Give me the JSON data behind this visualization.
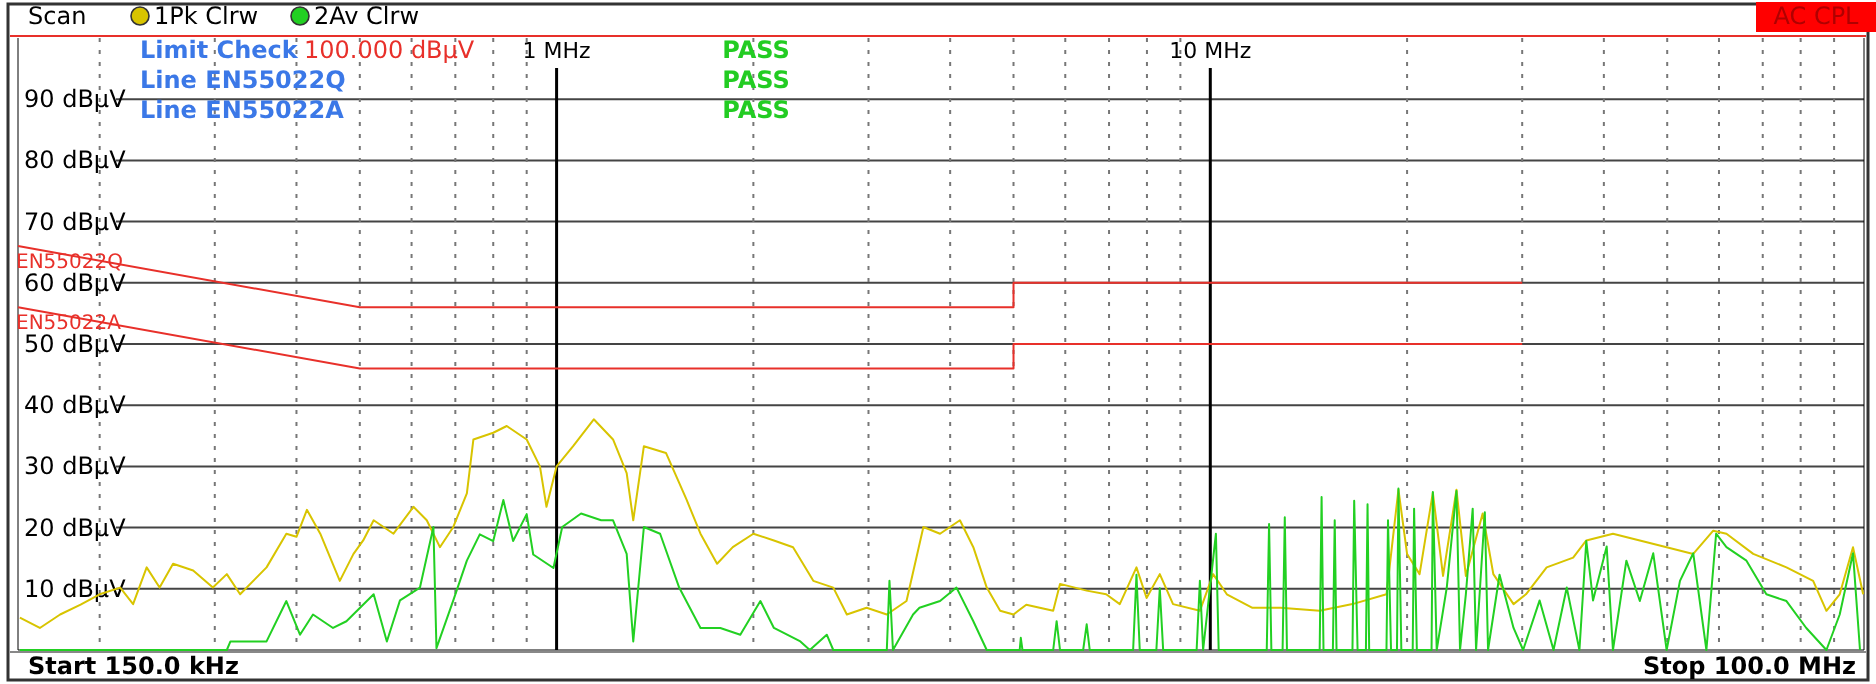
{
  "chart_data": {
    "type": "line",
    "annotations": [
      "Scan",
      "Limit Check",
      "100.000 dBµV",
      "Line EN55022Q",
      "Line EN55022A",
      "PASS",
      "PASS",
      "PASS",
      "AC CPL",
      "Start 150.0 kHz",
      "Stop 100.0 MHz"
    ],
    "xlim": [
      0.15,
      100
    ],
    "ylim": [
      0,
      100
    ],
    "log": "x",
    "grid": true,
    "legend": "top left",
    "xticks": [
      {
        "value": 0.2,
        "label": null
      },
      {
        "value": 0.3,
        "label": null
      },
      {
        "value": 0.4,
        "label": null
      },
      {
        "value": 0.5,
        "label": null
      },
      {
        "value": 0.6,
        "label": null
      },
      {
        "value": 0.7,
        "label": null
      },
      {
        "value": 0.8,
        "label": null
      },
      {
        "value": 0.9,
        "label": null
      },
      {
        "value": 1,
        "label": "1 MHz"
      },
      {
        "value": 2,
        "label": null
      },
      {
        "value": 3,
        "label": null
      },
      {
        "value": 4,
        "label": null
      },
      {
        "value": 5,
        "label": null
      },
      {
        "value": 6,
        "label": null
      },
      {
        "value": 7,
        "label": null
      },
      {
        "value": 8,
        "label": null
      },
      {
        "value": 9,
        "label": null
      },
      {
        "value": 10,
        "label": "10 MHz"
      },
      {
        "value": 20,
        "label": null
      },
      {
        "value": 30,
        "label": null
      },
      {
        "value": 40,
        "label": null
      },
      {
        "value": 50,
        "label": null
      },
      {
        "value": 60,
        "label": null
      },
      {
        "value": 70,
        "label": null
      },
      {
        "value": 80,
        "label": null
      },
      {
        "value": 90,
        "label": null
      }
    ],
    "yticks": [
      {
        "value": 10,
        "label": "10 dBµV"
      },
      {
        "value": 20,
        "label": "20 dBµV"
      },
      {
        "value": 30,
        "label": "30 dBµV"
      },
      {
        "value": 40,
        "label": "40 dBµV"
      },
      {
        "value": 50,
        "label": "50 dBµV"
      },
      {
        "value": 60,
        "label": "60 dBµV"
      },
      {
        "value": 70,
        "label": "70 dBµV"
      },
      {
        "value": 80,
        "label": "80 dBµV"
      },
      {
        "value": 90,
        "label": "90 dBµV"
      }
    ],
    "series": [
      {
        "name": "1Pk Clrw",
        "color": "#d8c400",
        "x": [
          0.151,
          0.162,
          0.174,
          0.187,
          0.2,
          0.215,
          0.225,
          0.236,
          0.247,
          0.259,
          0.278,
          0.298,
          0.313,
          0.328,
          0.36,
          0.386,
          0.4,
          0.415,
          0.435,
          0.466,
          0.489,
          0.506,
          0.525,
          0.563,
          0.604,
          0.633,
          0.663,
          0.695,
          0.729,
          0.746,
          0.8,
          0.839,
          0.9,
          0.943,
          0.965,
          1.0,
          1.06,
          1.14,
          1.22,
          1.28,
          1.31,
          1.36,
          1.47,
          1.58,
          1.66,
          1.76,
          1.86,
          2.0,
          2.15,
          2.3,
          2.47,
          2.65,
          2.78,
          2.98,
          3.2,
          3.43,
          3.64,
          3.86,
          4.14,
          4.34,
          4.55,
          4.77,
          5.0,
          5.23,
          5.75,
          5.89,
          6.47,
          6.93,
          7.27,
          7.71,
          7.99,
          8.37,
          8.77,
          9.64,
          10.1,
          10.6,
          11.6,
          12.8,
          14.7,
          16.5,
          18.6,
          19.4,
          20.0,
          20.9,
          21.9,
          22.7,
          23.8,
          24.6,
          26.1,
          27.1,
          29.1,
          30.4,
          32.7,
          35.9,
          37.6,
          41.3,
          45.4,
          49.9,
          54.8,
          58.8,
          61.6,
          67.7,
          76.1,
          83.6,
          87.6,
          91.8,
          96.2,
          99.7
        ],
        "values": [
          5.3,
          3.6,
          5.8,
          7.4,
          9.1,
          10.2,
          7.5,
          13.5,
          10.2,
          14.1,
          13.0,
          10.2,
          12.4,
          9.1,
          13.5,
          19.0,
          18.5,
          22.9,
          19.0,
          11.3,
          15.7,
          17.9,
          21.2,
          19.0,
          23.4,
          21.2,
          16.8,
          20.1,
          25.6,
          34.4,
          35.5,
          36.6,
          34.4,
          30.0,
          23.4,
          30.0,
          33.3,
          37.7,
          34.4,
          28.9,
          21.2,
          33.3,
          32.2,
          24.6,
          19.0,
          14.1,
          16.8,
          19.0,
          17.9,
          16.8,
          11.3,
          10.2,
          5.8,
          6.9,
          5.8,
          8.0,
          20.1,
          19.0,
          21.2,
          16.8,
          10.2,
          6.4,
          5.8,
          7.4,
          6.4,
          10.8,
          9.7,
          9.1,
          7.5,
          13.5,
          8.5,
          12.4,
          7.5,
          6.4,
          12.4,
          9.1,
          6.9,
          6.9,
          6.4,
          7.5,
          9.1,
          26.2,
          15.7,
          12.4,
          25.7,
          12.1,
          26.2,
          12.1,
          22.3,
          12.4,
          7.5,
          9.1,
          13.5,
          15.1,
          17.9,
          19.0,
          17.9,
          16.8,
          15.7,
          19.5,
          19.0,
          15.7,
          13.5,
          11.3,
          6.4,
          9.1,
          16.8,
          9.1
        ]
      },
      {
        "name": "2Av Clrw",
        "color": "#22d022",
        "x": [
          0.151,
          0.313,
          0.317,
          0.36,
          0.386,
          0.405,
          0.424,
          0.455,
          0.477,
          0.525,
          0.55,
          0.576,
          0.618,
          0.648,
          0.655,
          0.695,
          0.729,
          0.763,
          0.8,
          0.829,
          0.858,
          0.9,
          0.921,
          0.989,
          1.02,
          1.09,
          1.17,
          1.22,
          1.28,
          1.31,
          1.36,
          1.44,
          1.54,
          1.66,
          1.78,
          1.91,
          2.05,
          2.15,
          2.36,
          2.44,
          2.59,
          2.65,
          3.2,
          3.23,
          3.27,
          3.51,
          3.59,
          3.86,
          4.09,
          4.34,
          4.55,
          5.11,
          5.13,
          5.16,
          5.75,
          5.82,
          5.89,
          6.39,
          6.47,
          6.54,
          7.62,
          7.71,
          7.8,
          8.27,
          8.37,
          8.47,
          9.53,
          9.64,
          9.75,
          10.2,
          10.3,
          12.2,
          12.3,
          12.4,
          12.9,
          13.0,
          13.1,
          14.7,
          14.8,
          14.9,
          15.4,
          15.5,
          15.6,
          16.5,
          16.6,
          16.8,
          17.3,
          17.4,
          17.5,
          18.6,
          18.7,
          18.9,
          19.3,
          19.4,
          19.6,
          20.4,
          20.5,
          20.7,
          21.8,
          21.9,
          22.2,
          23.0,
          23.8,
          24.1,
          24.6,
          25.2,
          25.5,
          26.3,
          26.6,
          27.7,
          29.1,
          30.1,
          31.9,
          33.5,
          35.1,
          36.7,
          37.6,
          38.5,
          40.4,
          41.3,
          43.3,
          45.4,
          47.6,
          49.9,
          52.3,
          54.8,
          57.4,
          59.4,
          61.6,
          66.1,
          70.9,
          76.1,
          81.6,
          87.6,
          91.8,
          96.2,
          98.6
        ],
        "values": [
          0,
          0,
          1.4,
          1.4,
          8.0,
          2.5,
          5.8,
          3.6,
          4.7,
          9.1,
          1.4,
          8.1,
          10.2,
          20.1,
          0.3,
          8.1,
          14.6,
          18.9,
          17.8,
          24.5,
          17.8,
          22.2,
          15.6,
          13.4,
          20.1,
          22.3,
          21.2,
          21.2,
          15.7,
          1.4,
          20.1,
          19.0,
          10.2,
          3.6,
          3.6,
          2.5,
          8.0,
          3.6,
          1.4,
          0,
          2.5,
          0,
          0,
          11.3,
          0,
          5.8,
          6.9,
          8.0,
          10.2,
          4.7,
          0,
          0,
          2.0,
          0,
          0,
          4.7,
          0,
          0,
          4.2,
          0,
          0,
          12.3,
          0,
          0,
          10.1,
          0,
          0,
          11.3,
          0,
          19.0,
          0,
          0,
          20.6,
          0,
          0,
          21.7,
          0,
          0,
          25.0,
          0,
          0,
          21.2,
          0,
          0,
          24.4,
          0,
          0,
          23.8,
          0,
          0,
          21.2,
          0,
          0,
          26.4,
          0,
          0,
          23.1,
          0,
          0,
          25.8,
          0,
          10.2,
          26.0,
          0,
          9.1,
          23.1,
          0,
          22.5,
          0,
          12.3,
          3.6,
          0,
          8.1,
          0,
          10.2,
          0,
          17.8,
          8.1,
          16.9,
          0,
          14.6,
          8.0,
          15.8,
          0,
          11.3,
          15.8,
          0,
          19.0,
          16.8,
          14.6,
          9.1,
          8.0,
          3.6,
          0,
          5.8,
          15.8,
          0
        ]
      },
      {
        "name": "EN55022Q",
        "type": "line",
        "color": "#e8302a",
        "x": [
          0.15,
          0.5,
          5,
          5,
          30
        ],
        "values": [
          66,
          56,
          56,
          60,
          60
        ]
      },
      {
        "name": "EN55022A",
        "type": "line",
        "color": "#e8302a",
        "x": [
          0.15,
          0.5,
          5,
          5,
          30
        ],
        "values": [
          56,
          46,
          46,
          50,
          50
        ]
      }
    ]
  }
}
